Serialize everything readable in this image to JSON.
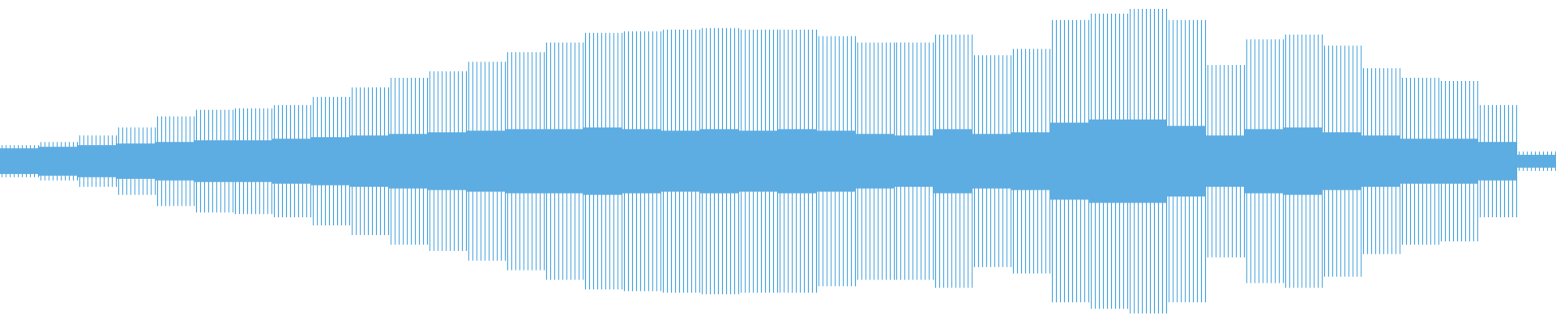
{
  "waveform": {
    "color": "#5dade2",
    "peak": [
      0.1,
      0.12,
      0.16,
      0.21,
      0.28,
      0.32,
      0.33,
      0.35,
      0.4,
      0.46,
      0.52,
      0.56,
      0.62,
      0.68,
      0.74,
      0.8,
      0.81,
      0.82,
      0.83,
      0.82,
      0.82,
      0.78,
      0.74,
      0.74,
      0.79,
      0.66,
      0.7,
      0.88,
      0.92,
      0.95,
      0.88,
      0.6,
      0.76,
      0.79,
      0.72,
      0.58,
      0.52,
      0.5,
      0.35,
      0.06
    ],
    "body": [
      0.08,
      0.09,
      0.1,
      0.11,
      0.12,
      0.13,
      0.13,
      0.14,
      0.15,
      0.16,
      0.17,
      0.18,
      0.19,
      0.2,
      0.2,
      0.21,
      0.2,
      0.19,
      0.2,
      0.19,
      0.2,
      0.19,
      0.17,
      0.16,
      0.2,
      0.17,
      0.18,
      0.24,
      0.26,
      0.26,
      0.22,
      0.16,
      0.2,
      0.21,
      0.18,
      0.16,
      0.14,
      0.14,
      0.12,
      0.04
    ]
  }
}
